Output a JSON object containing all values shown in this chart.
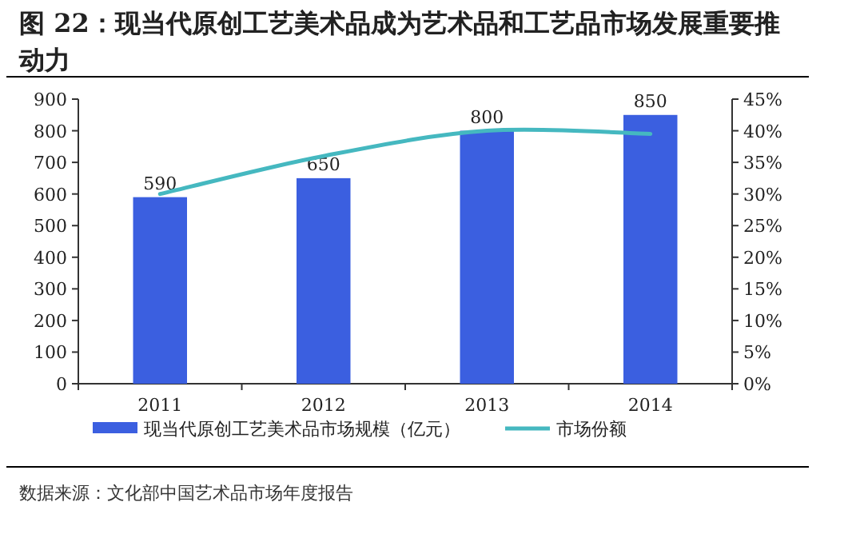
{
  "chart_data": {
    "type": "bar",
    "title": "图 22：现当代原创工艺美术品成为艺术品和工艺品市场发展重要推动力",
    "annotations": [
      "数据来源：文化部中国艺术品市场年度报告"
    ],
    "categories": [
      "2011",
      "2012",
      "2013",
      "2014"
    ],
    "series": [
      {
        "name": "现当代原创工艺美术品市场规模（亿元）",
        "color": "#3b5fe0",
        "values": [
          590,
          650,
          800,
          850
        ],
        "value_labels": [
          "590",
          "650",
          "800",
          "850"
        ]
      },
      {
        "name": "市场份额",
        "type": "line",
        "axis": "y2",
        "color": "#45b8c0",
        "values": [
          30,
          36,
          40,
          39.5
        ]
      }
    ],
    "legend": "bottom",
    "grid": false,
    "marker": "none",
    "line_style": "solid",
    "ylim": [
      0,
      900
    ],
    "yticks": [
      0,
      100,
      200,
      300,
      400,
      500,
      600,
      700,
      800,
      900
    ],
    "y2lim": [
      0,
      45
    ],
    "y2ticks": [
      {
        "value": 0,
        "label": "0%"
      },
      {
        "value": 5,
        "label": "5%"
      },
      {
        "value": 10,
        "label": "10%"
      },
      {
        "value": 15,
        "label": "15%"
      },
      {
        "value": 20,
        "label": "20%"
      },
      {
        "value": 25,
        "label": "25%"
      },
      {
        "value": 30,
        "label": "30%"
      },
      {
        "value": 35,
        "label": "35%"
      },
      {
        "value": 40,
        "label": "40%"
      },
      {
        "value": 45,
        "label": "45%"
      }
    ]
  }
}
